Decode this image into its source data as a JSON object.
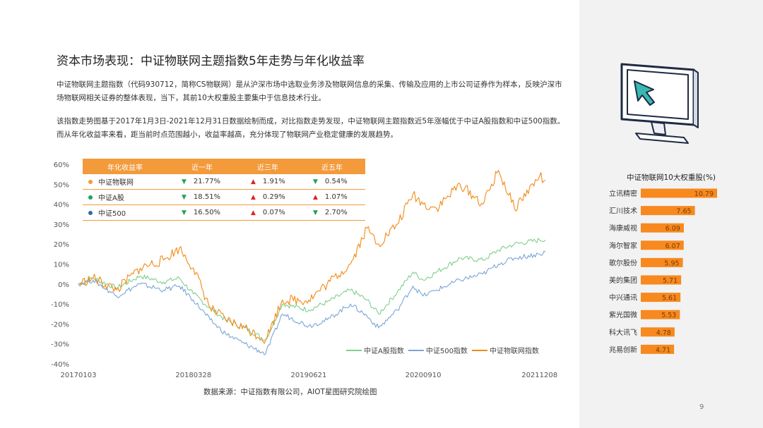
{
  "title": "资本市场表现：中证物联网主题指数5年走势与年化收益率",
  "paragraphs": [
    "中证物联网主题指数（代码930712，简称CS物联网）是从沪深市场中选取业务涉及物联网信息的采集、传输及应用的上市公司证券作为样本，反映沪深市场物联网相关证券的整体表现，当下，其前10大权重股主要集中于信息技术行业。",
    "该指数走势图基于2017年1月3日-2021年12月31日数据绘制而成，对比指数走势发现，中证物联网主题指数近5年涨幅优于中证A股指数和中证500指数。而从年化收益率来看，距当前时点范围越小，收益率越高，充分体现了物联网产业稳定健康的发展趋势。"
  ],
  "returns_table": {
    "headers": [
      "年化收益率",
      "近一年",
      "近三年",
      "近五年"
    ],
    "rows": [
      {
        "name": "中证物联网",
        "color": "#f39a3b",
        "cells": [
          {
            "v": "21.77%",
            "dir": "down"
          },
          {
            "v": "1.91%",
            "dir": "up"
          },
          {
            "v": "0.54%",
            "dir": "down"
          }
        ]
      },
      {
        "name": "中证A股",
        "color": "#22a05a",
        "cells": [
          {
            "v": "18.51%",
            "dir": "down"
          },
          {
            "v": "0.29%",
            "dir": "up"
          },
          {
            "v": "1.07%",
            "dir": "up"
          }
        ]
      },
      {
        "name": "中证500",
        "color": "#2b6cb0",
        "cells": [
          {
            "v": "16.50%",
            "dir": "down"
          },
          {
            "v": "0.07%",
            "dir": "up"
          },
          {
            "v": "2.70%",
            "dir": "down"
          }
        ]
      }
    ]
  },
  "source": "数据来源：中证指数有限公司，AIOT星图研究院绘图",
  "page_number": "9",
  "bar_chart_title": "中证物联网10大权重股(%)",
  "colors": {
    "iot": "#f28a16",
    "ashare": "#7fcf8e",
    "csi500": "#7aa6d6",
    "bar": "#f7891f",
    "header": "#f39a3b"
  },
  "chart_data": [
    {
      "type": "line",
      "title": "",
      "xlabel": "",
      "ylabel": "",
      "x_tick_labels": [
        "20170103",
        "20180328",
        "20190621",
        "20200910",
        "20211208"
      ],
      "x_range": [
        "20170103",
        "20211231"
      ],
      "y_tick_labels": [
        "60%",
        "50%",
        "40%",
        "30%",
        "20%",
        "10%",
        "0%",
        "-10%",
        "-20%",
        "-30%",
        "-40%"
      ],
      "ylim": [
        -40,
        60
      ],
      "y_unit": "%",
      "grid": false,
      "legend": "bottom-right",
      "series": [
        {
          "name": "中证A股指数",
          "color": "#7fcf8e",
          "x": [
            "20170103",
            "20170301",
            "20170601",
            "20170901",
            "20171201",
            "20180201",
            "20180328",
            "20180601",
            "20180801",
            "20181015",
            "20190104",
            "20190310",
            "20190621",
            "20190901",
            "20191201",
            "20200203",
            "20200320",
            "20200601",
            "20200801",
            "20200910",
            "20201101",
            "20210201",
            "20210501",
            "20210701",
            "20210901",
            "20211208",
            "20211231"
          ],
          "y": [
            0,
            3,
            -2,
            4,
            1,
            3,
            -5,
            -12,
            -18,
            -22,
            -28,
            -10,
            -13,
            -9,
            -3,
            -8,
            -15,
            -4,
            6,
            2,
            6,
            13,
            12,
            17,
            20,
            22,
            22
          ]
        },
        {
          "name": "中证500指数",
          "color": "#7aa6d6",
          "x": [
            "20170103",
            "20170301",
            "20170601",
            "20170901",
            "20171201",
            "20180201",
            "20180328",
            "20180601",
            "20180801",
            "20181015",
            "20190104",
            "20190310",
            "20190621",
            "20190901",
            "20191201",
            "20200203",
            "20200320",
            "20200601",
            "20200801",
            "20200910",
            "20201101",
            "20210201",
            "20210501",
            "20210701",
            "20210901",
            "20211208",
            "20211231"
          ],
          "y": [
            0,
            2,
            -6,
            0,
            -3,
            -1,
            -8,
            -18,
            -25,
            -30,
            -35,
            -15,
            -21,
            -18,
            -10,
            -16,
            -22,
            -13,
            -1,
            -6,
            -3,
            2,
            5,
            10,
            13,
            15,
            16
          ]
        },
        {
          "name": "中证物联网指数",
          "color": "#f28a16",
          "x": [
            "20170103",
            "20170301",
            "20170601",
            "20170901",
            "20171201",
            "20180201",
            "20180328",
            "20180601",
            "20180801",
            "20181015",
            "20190104",
            "20190310",
            "20190621",
            "20190901",
            "20191201",
            "20200203",
            "20200320",
            "20200601",
            "20200801",
            "20200910",
            "20201101",
            "20210201",
            "20210501",
            "20210701",
            "20210901",
            "20211208",
            "20211231"
          ],
          "y": [
            0,
            3,
            -3,
            8,
            12,
            18,
            8,
            -12,
            -18,
            -22,
            -28,
            -8,
            -8,
            0,
            10,
            28,
            20,
            30,
            45,
            40,
            38,
            50,
            40,
            57,
            38,
            54,
            52
          ]
        }
      ]
    },
    {
      "type": "bar",
      "title": "中证物联网10大权重股(%)",
      "orientation": "horizontal",
      "categories": [
        "立讯精密",
        "汇川技术",
        "海康威视",
        "海尔智家",
        "歌尔股份",
        "美的集团",
        "中兴通讯",
        "紫光国微",
        "科大讯飞",
        "兆易创新"
      ],
      "values": [
        10.79,
        7.65,
        6.09,
        6.07,
        5.95,
        5.71,
        5.61,
        5.53,
        4.78,
        4.71
      ],
      "value_labels": [
        "10.79",
        "7.65",
        "6.09",
        "6.07",
        "5.95",
        "5.71",
        "5.61",
        "5.53",
        "4.78",
        "4.71"
      ],
      "color": "#f7891f"
    }
  ]
}
